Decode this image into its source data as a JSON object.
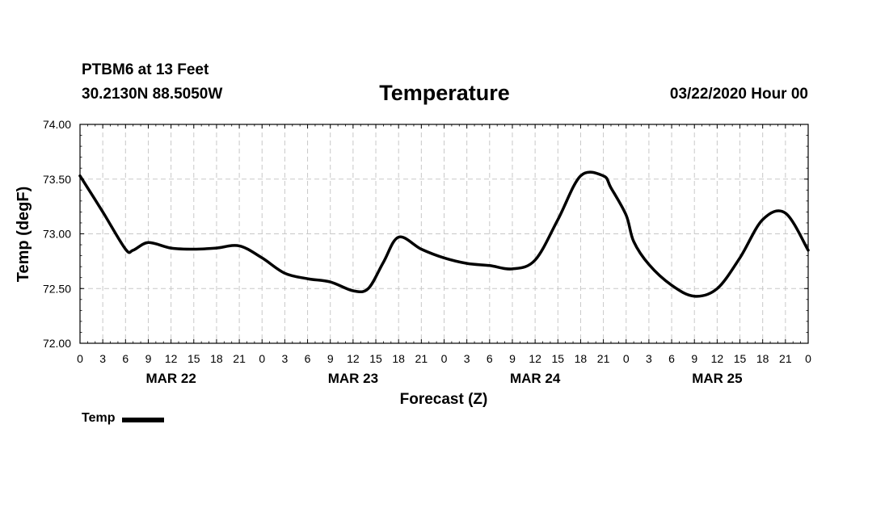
{
  "header": {
    "station": "PTBM6 at 13 Feet",
    "coords": "30.2130N 88.5050W",
    "title": "Temperature",
    "date": "03/22/2020 Hour 00"
  },
  "legend": {
    "label": "Temp"
  },
  "chart_data": {
    "type": "line",
    "title": "Temperature",
    "xlabel": "Forecast (Z)",
    "ylabel": "Temp (degF)",
    "x_unit": "forecast hour",
    "xlim": [
      0,
      96
    ],
    "ylim": [
      72.0,
      74.0
    ],
    "ytick_labels": [
      "72.00",
      "72.50",
      "73.00",
      "73.50",
      "74.00"
    ],
    "xtick_labels": [
      "0",
      "3",
      "6",
      "9",
      "12",
      "15",
      "18",
      "21",
      "0",
      "3",
      "6",
      "9",
      "12",
      "15",
      "18",
      "21",
      "0",
      "3",
      "6",
      "9",
      "12",
      "15",
      "18",
      "21",
      "0",
      "3",
      "6",
      "9",
      "12",
      "15",
      "18",
      "21",
      "0"
    ],
    "day_labels": [
      "MAR 22",
      "MAR 23",
      "MAR 24",
      "MAR 25"
    ],
    "grid": true,
    "legend_position": "bottom-left",
    "series": [
      {
        "name": "Temp",
        "color": "#000000",
        "x": [
          0,
          3,
          6,
          7,
          9,
          12,
          15,
          18,
          21,
          24,
          27,
          30,
          33,
          36,
          38,
          40,
          42,
          45,
          48,
          51,
          54,
          57,
          60,
          63,
          66,
          69,
          70,
          72,
          73,
          75,
          78,
          81,
          84,
          87,
          90,
          93,
          96
        ],
        "y": [
          73.53,
          73.2,
          72.86,
          72.85,
          72.92,
          72.87,
          72.86,
          72.87,
          72.89,
          72.78,
          72.64,
          72.59,
          72.56,
          72.48,
          72.5,
          72.74,
          72.97,
          72.86,
          72.78,
          72.73,
          72.71,
          72.68,
          72.76,
          73.13,
          73.53,
          73.53,
          73.42,
          73.17,
          72.93,
          72.72,
          72.53,
          72.43,
          72.5,
          72.78,
          73.13,
          73.19,
          72.85
        ]
      }
    ]
  }
}
